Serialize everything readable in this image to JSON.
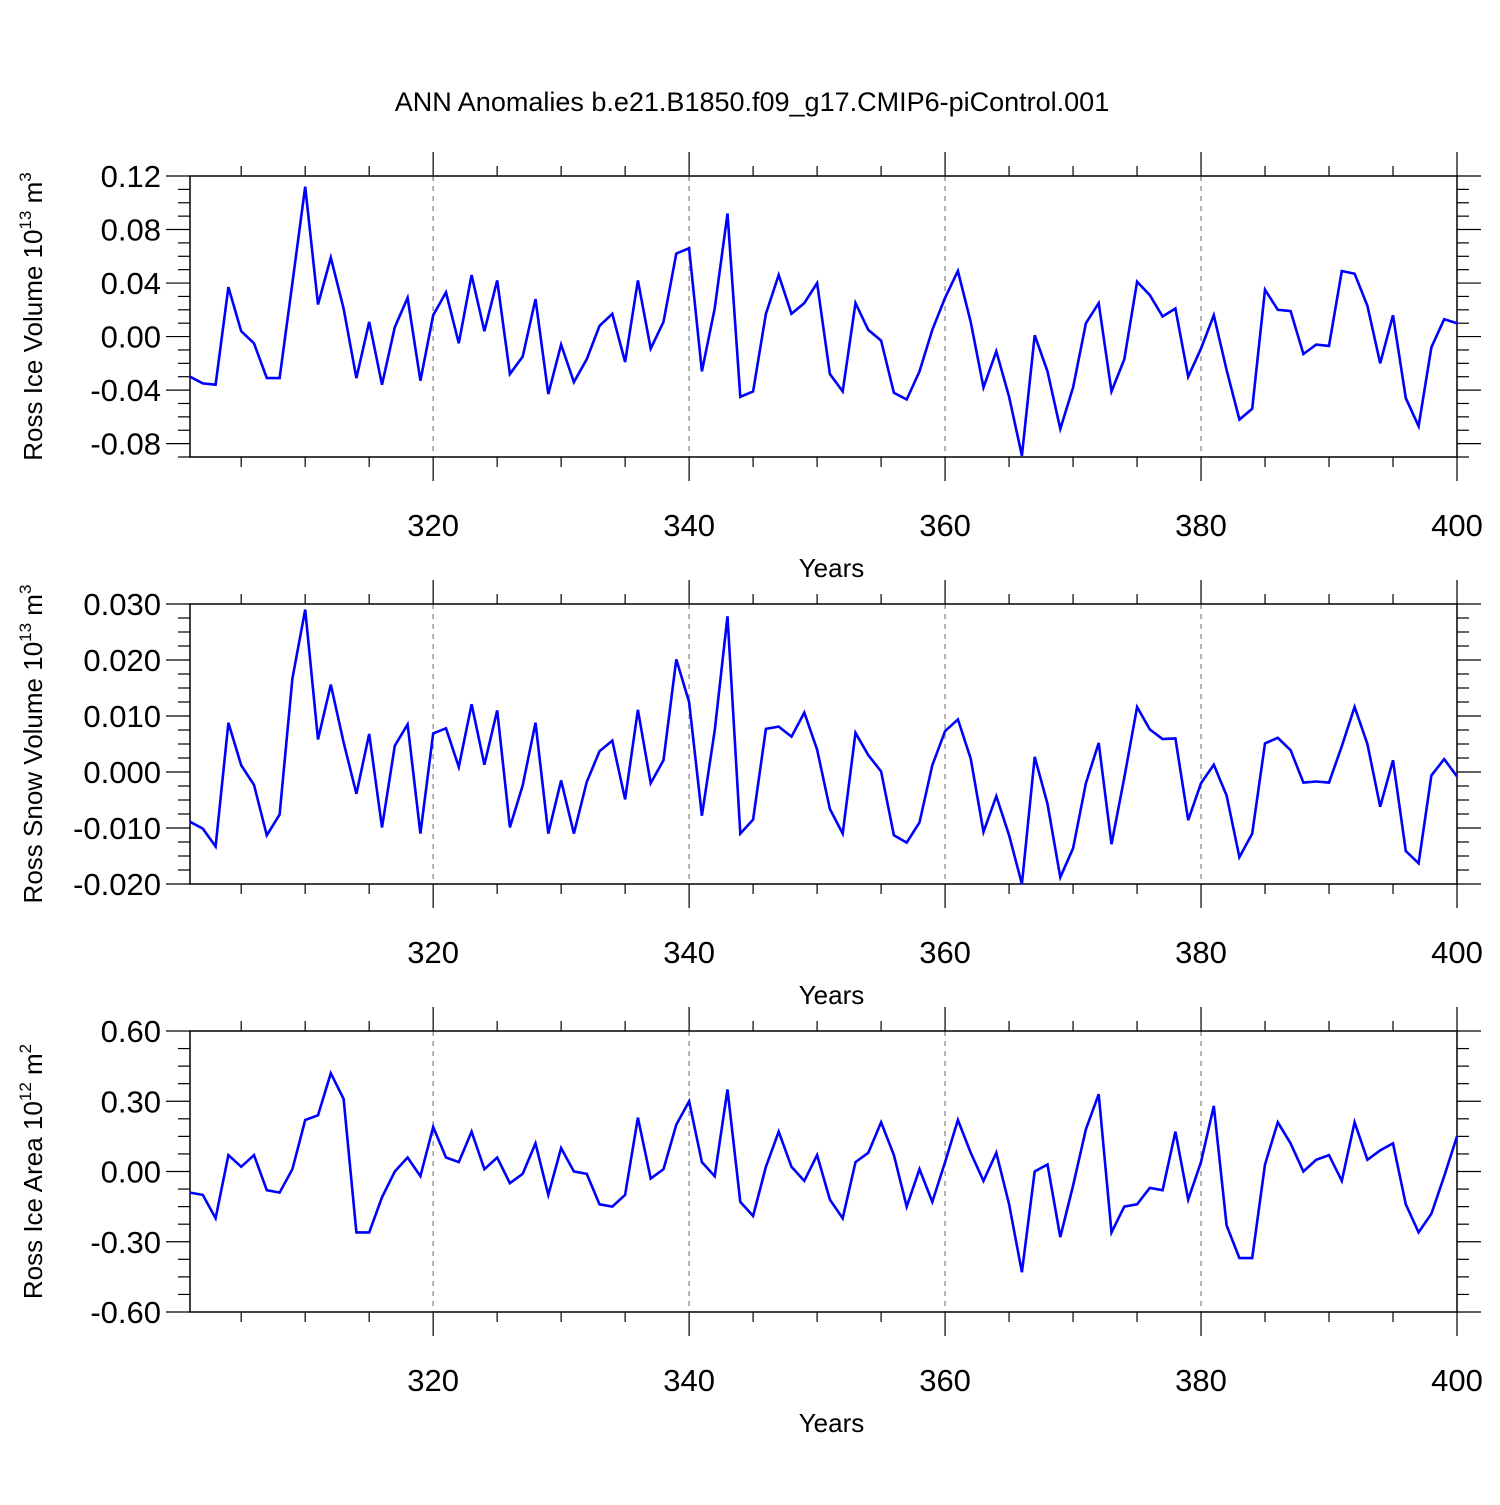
{
  "title": "ANN Anomalies b.e21.B1850.f09_g17.CMIP6-piControl.001",
  "line_color": "#0000ff",
  "chart_data": [
    {
      "type": "line",
      "ylabel_main": "Ross Ice Volume 10",
      "ylabel_sup": "13",
      "ylabel_unit": " m",
      "ylabel_unit_sup": "3",
      "xlabel": "Years",
      "xlim": [
        301,
        400
      ],
      "ylim": [
        -0.09,
        0.12
      ],
      "yticks": [
        -0.08,
        -0.04,
        0.0,
        0.04,
        0.08,
        0.12
      ],
      "ytick_labels": [
        "-0.08",
        "-0.04",
        "0.00",
        "0.04",
        "0.08",
        "0.12"
      ],
      "xticks": [
        320,
        340,
        360,
        380,
        400
      ],
      "xtick_labels": [
        "320",
        "340",
        "360",
        "380",
        "400"
      ],
      "x_start": 301,
      "values": [
        -0.03,
        -0.035,
        -0.036,
        0.037,
        0.004,
        -0.005,
        -0.031,
        -0.031,
        0.04,
        0.112,
        0.024,
        0.059,
        0.021,
        -0.031,
        0.011,
        -0.036,
        0.007,
        0.029,
        -0.033,
        0.016,
        0.033,
        -0.005,
        0.046,
        0.004,
        0.042,
        -0.028,
        -0.015,
        0.028,
        -0.043,
        -0.006,
        -0.034,
        -0.017,
        0.008,
        0.017,
        -0.019,
        0.042,
        -0.009,
        0.011,
        0.062,
        0.066,
        -0.026,
        0.021,
        0.092,
        -0.045,
        -0.041,
        0.017,
        0.046,
        0.017,
        0.025,
        0.04,
        -0.028,
        -0.041,
        0.025,
        0.005,
        -0.003,
        -0.042,
        -0.047,
        -0.026,
        0.005,
        0.029,
        0.049,
        0.011,
        -0.038,
        -0.011,
        -0.045,
        -0.089,
        0.001,
        -0.026,
        -0.069,
        -0.038,
        0.01,
        0.025,
        -0.041,
        -0.017,
        0.041,
        0.031,
        0.015,
        0.021,
        -0.03,
        -0.009,
        0.016,
        -0.025,
        -0.062,
        -0.054,
        0.035,
        0.02,
        0.019,
        -0.013,
        -0.006,
        -0.007,
        0.049,
        0.047,
        0.023,
        -0.02,
        0.016,
        -0.046,
        -0.067,
        -0.008,
        0.013,
        0.01
      ]
    },
    {
      "type": "line",
      "ylabel_main": "Ross Snow Volume 10",
      "ylabel_sup": "13",
      "ylabel_unit": " m",
      "ylabel_unit_sup": "3",
      "xlabel": "Years",
      "xlim": [
        301,
        400
      ],
      "ylim": [
        -0.02,
        0.03
      ],
      "yticks": [
        -0.02,
        -0.01,
        0.0,
        0.01,
        0.02,
        0.03
      ],
      "ytick_labels": [
        "-0.020",
        "-0.010",
        "0.000",
        "0.010",
        "0.020",
        "0.030"
      ],
      "xticks": [
        320,
        340,
        360,
        380,
        400
      ],
      "xtick_labels": [
        "320",
        "340",
        "360",
        "380",
        "400"
      ],
      "x_start": 301,
      "values": [
        -0.0089,
        -0.0101,
        -0.0133,
        0.0088,
        0.0012,
        -0.0023,
        -0.0113,
        -0.0076,
        0.0167,
        0.029,
        0.0058,
        0.0156,
        0.0053,
        -0.0039,
        0.0068,
        -0.0099,
        0.0047,
        0.0085,
        -0.011,
        0.0069,
        0.0078,
        0.0009,
        0.0121,
        0.0013,
        0.011,
        -0.0099,
        -0.0024,
        0.0088,
        -0.011,
        -0.0015,
        -0.011,
        -0.0018,
        0.0037,
        0.0056,
        -0.0049,
        0.0111,
        -0.002,
        0.0021,
        0.0201,
        0.0125,
        -0.0078,
        0.0074,
        0.0278,
        -0.011,
        -0.0085,
        0.0077,
        0.0081,
        0.0063,
        0.0106,
        0.004,
        -0.0066,
        -0.011,
        0.007,
        0.003,
        0.0001,
        -0.0113,
        -0.0126,
        -0.009,
        0.0012,
        0.0073,
        0.0094,
        0.0024,
        -0.0107,
        -0.0043,
        -0.0113,
        -0.02,
        0.0027,
        -0.0057,
        -0.0188,
        -0.0136,
        -0.002,
        0.0052,
        -0.0129,
        -0.001,
        0.0116,
        0.0076,
        0.0059,
        0.006,
        -0.0086,
        -0.002,
        0.0013,
        -0.0042,
        -0.0152,
        -0.011,
        0.0051,
        0.0061,
        0.0039,
        -0.0019,
        -0.0017,
        -0.0019,
        0.0046,
        0.0116,
        0.005,
        -0.0062,
        0.0021,
        -0.0141,
        -0.0163,
        -0.0006,
        0.0023,
        -0.0008
      ]
    },
    {
      "type": "line",
      "ylabel_main": "Ross Ice Area 10",
      "ylabel_sup": "12",
      "ylabel_unit": " m",
      "ylabel_unit_sup": "2",
      "xlabel": "Years",
      "xlim": [
        301,
        400
      ],
      "ylim": [
        -0.6,
        0.6
      ],
      "yticks": [
        -0.6,
        -0.3,
        0.0,
        0.3,
        0.6
      ],
      "ytick_labels": [
        "-0.60",
        "-0.30",
        "0.00",
        "0.30",
        "0.60"
      ],
      "xticks": [
        320,
        340,
        360,
        380,
        400
      ],
      "xtick_labels": [
        "320",
        "340",
        "360",
        "380",
        "400"
      ],
      "x_start": 301,
      "values": [
        -0.09,
        -0.1,
        -0.2,
        0.07,
        0.02,
        0.07,
        -0.08,
        -0.09,
        0.01,
        0.22,
        0.24,
        0.42,
        0.31,
        -0.26,
        -0.26,
        -0.11,
        0.0,
        0.06,
        -0.02,
        0.19,
        0.06,
        0.04,
        0.17,
        0.01,
        0.06,
        -0.05,
        -0.01,
        0.12,
        -0.1,
        0.1,
        0.0,
        -0.01,
        -0.14,
        -0.15,
        -0.1,
        0.23,
        -0.03,
        0.01,
        0.2,
        0.3,
        0.04,
        -0.02,
        0.35,
        -0.13,
        -0.19,
        0.02,
        0.17,
        0.02,
        -0.04,
        0.07,
        -0.12,
        -0.2,
        0.04,
        0.08,
        0.21,
        0.07,
        -0.15,
        0.01,
        -0.13,
        0.04,
        0.22,
        0.08,
        -0.04,
        0.08,
        -0.14,
        -0.43,
        0.0,
        0.03,
        -0.28,
        -0.06,
        0.18,
        0.33,
        -0.26,
        -0.15,
        -0.14,
        -0.07,
        -0.08,
        0.17,
        -0.12,
        0.04,
        0.28,
        -0.23,
        -0.37,
        -0.37,
        0.03,
        0.21,
        0.12,
        0.0,
        0.05,
        0.07,
        -0.04,
        0.21,
        0.05,
        0.09,
        0.12,
        -0.14,
        -0.26,
        -0.18,
        -0.02,
        0.15
      ]
    }
  ]
}
